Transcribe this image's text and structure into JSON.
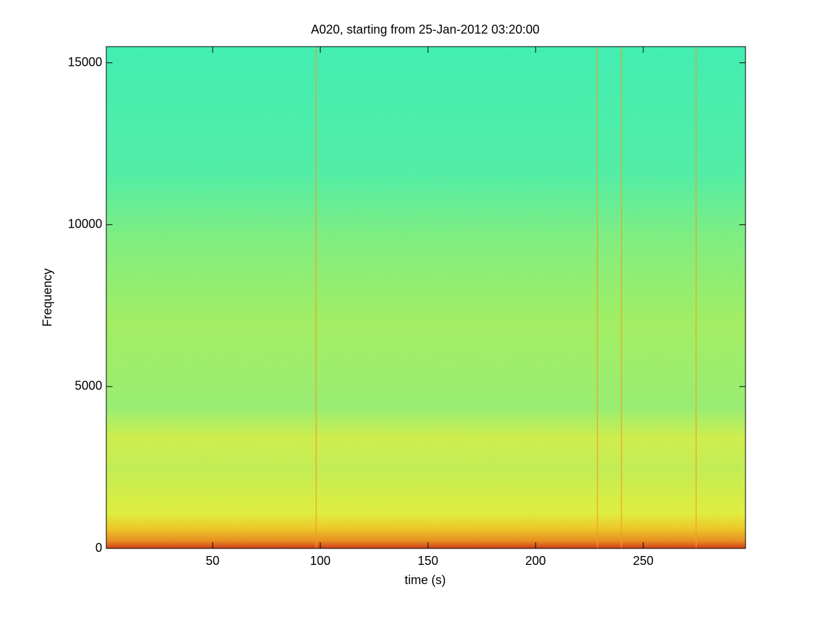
{
  "chart_data": {
    "type": "spectrogram",
    "title": "A020, starting from 25-Jan-2012 03:20:00",
    "x_label": "time (s)",
    "y_label": "Frequency",
    "xlim": [
      0.6,
      297.5
    ],
    "xticks": [
      50,
      100,
      150,
      200,
      250
    ],
    "ylim": [
      0,
      15500
    ],
    "yticks": [
      0,
      5000,
      10000,
      15000
    ]
  }
}
